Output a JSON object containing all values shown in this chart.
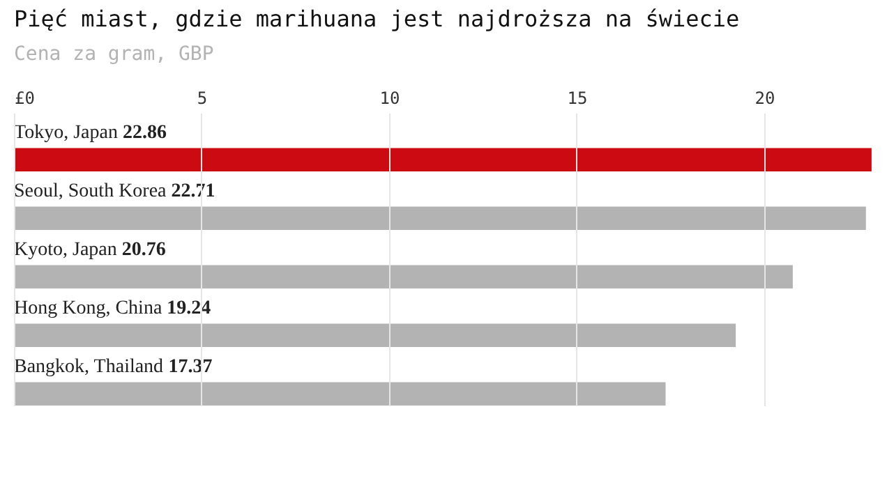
{
  "chart_data": {
    "type": "bar",
    "orientation": "horizontal",
    "title": "Pięć miast, gdzie marihuana jest najdroższa na świecie",
    "subtitle": "Cena za gram, GBP",
    "categories": [
      "Tokyo, Japan",
      "Seoul, South Korea",
      "Kyoto, Japan",
      "Hong Kong, China",
      "Bangkok, Thailand"
    ],
    "values": [
      22.86,
      22.71,
      20.76,
      19.24,
      17.37
    ],
    "colors": [
      "#cc0a11",
      "#b3b3b3",
      "#b3b3b3",
      "#b3b3b3",
      "#b3b3b3"
    ],
    "xlim": [
      0,
      22.9
    ],
    "xticks": [
      {
        "value": 0,
        "label": "£0"
      },
      5,
      10,
      15,
      20
    ],
    "grid": "x",
    "data_labels": true
  }
}
